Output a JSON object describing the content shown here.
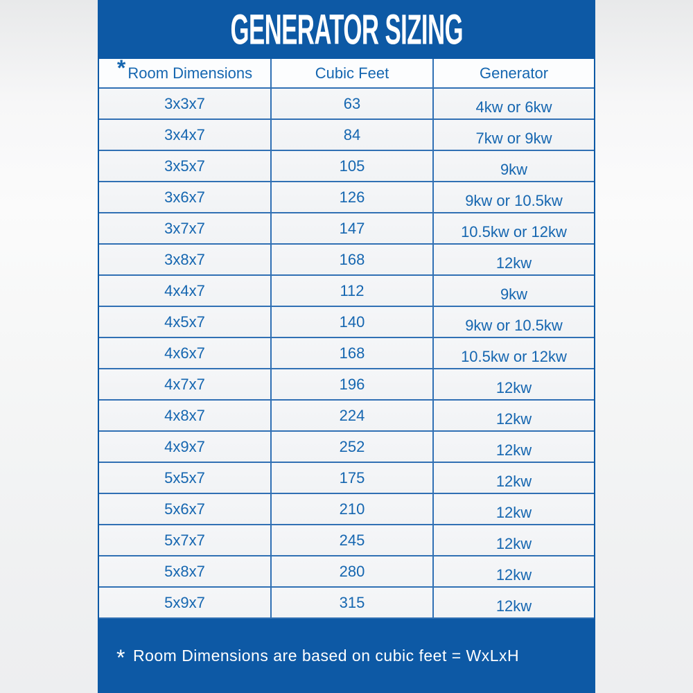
{
  "title": "GENERATOR SIZING",
  "colors": {
    "panel_blue": "#0d59a5",
    "line_blue": "#3070b4",
    "text_blue": "#1566b0",
    "header_bg": "#fcfdfe",
    "row_bg": "#f3f4f6",
    "title_text": "#ffffff"
  },
  "table": {
    "header": {
      "asterisk": "*",
      "room": "Room Dimensions",
      "cubic": "Cubic Feet",
      "generator": "Generator"
    },
    "rows": [
      {
        "dims": "3x3x7",
        "cubic_feet": "63",
        "generator": "4kw or 6kw"
      },
      {
        "dims": "3x4x7",
        "cubic_feet": "84",
        "generator": "7kw or 9kw"
      },
      {
        "dims": "3x5x7",
        "cubic_feet": "105",
        "generator": "9kw"
      },
      {
        "dims": "3x6x7",
        "cubic_feet": "126",
        "generator": "9kw or 10.5kw"
      },
      {
        "dims": "3x7x7",
        "cubic_feet": "147",
        "generator": "10.5kw or 12kw"
      },
      {
        "dims": "3x8x7",
        "cubic_feet": "168",
        "generator": "12kw"
      },
      {
        "dims": "4x4x7",
        "cubic_feet": "112",
        "generator": "9kw"
      },
      {
        "dims": "4x5x7",
        "cubic_feet": "140",
        "generator": "9kw or 10.5kw"
      },
      {
        "dims": "4x6x7",
        "cubic_feet": "168",
        "generator": "10.5kw or 12kw"
      },
      {
        "dims": "4x7x7",
        "cubic_feet": "196",
        "generator": "12kw"
      },
      {
        "dims": "4x8x7",
        "cubic_feet": "224",
        "generator": "12kw"
      },
      {
        "dims": "4x9x7",
        "cubic_feet": "252",
        "generator": "12kw"
      },
      {
        "dims": "5x5x7",
        "cubic_feet": "175",
        "generator": "12kw"
      },
      {
        "dims": "5x6x7",
        "cubic_feet": "210",
        "generator": "12kw"
      },
      {
        "dims": "5x7x7",
        "cubic_feet": "245",
        "generator": "12kw"
      },
      {
        "dims": "5x8x7",
        "cubic_feet": "280",
        "generator": "12kw"
      },
      {
        "dims": "5x9x7",
        "cubic_feet": "315",
        "generator": "12kw"
      }
    ]
  },
  "footnote": {
    "asterisk": "*",
    "text": "Room Dimensions are based on cubic feet = WxLxH"
  }
}
